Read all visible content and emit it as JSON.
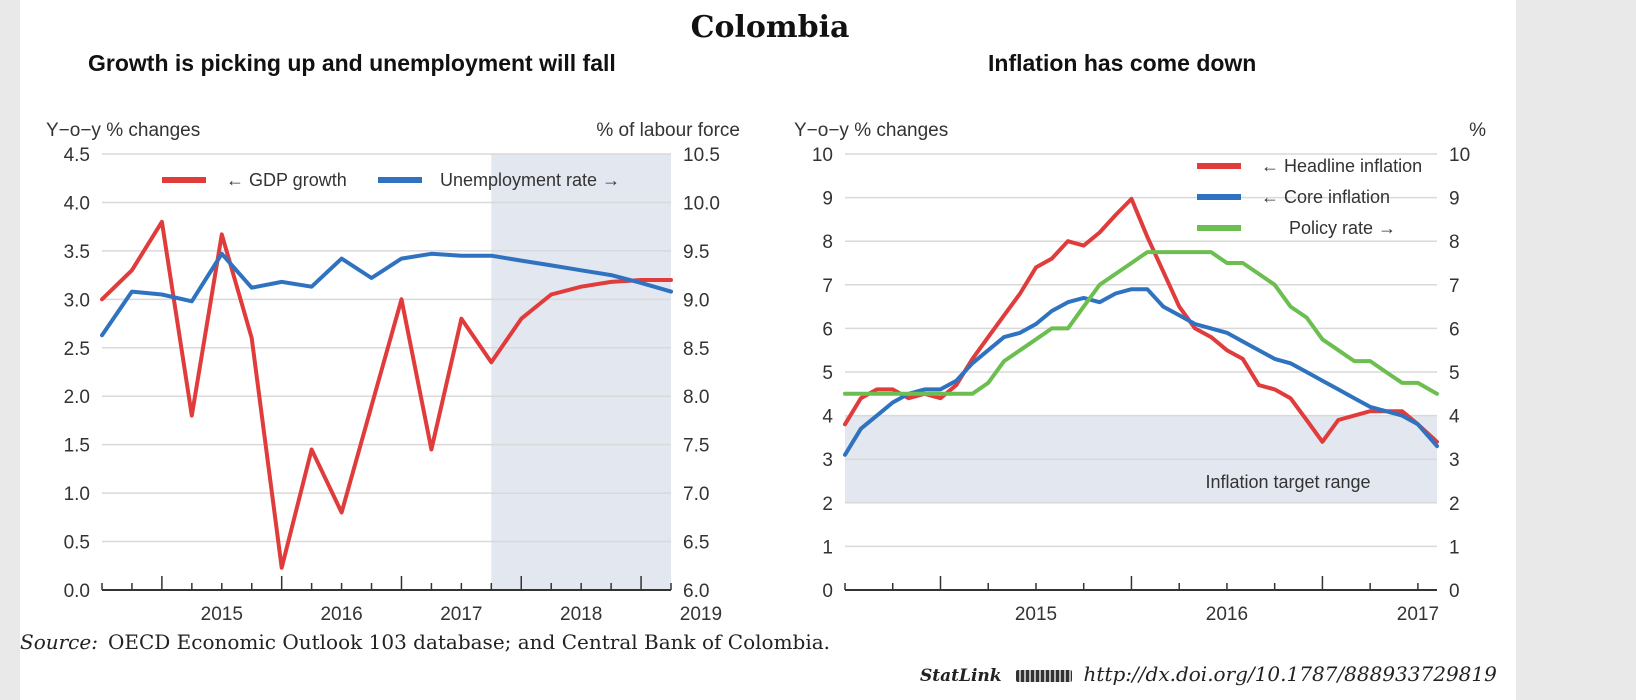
{
  "title": "Colombia",
  "source_label": "Source:",
  "source_text": "OECD Economic Outlook 103 database; and Central Bank of Colombia.",
  "statlink_label": "StatLink",
  "statlink_url": "http://dx.doi.org/10.1787/888933729819",
  "colors": {
    "red": "#e03c3c",
    "blue": "#2f73c0",
    "green": "#6cbe50",
    "shade": "#e3e7ef",
    "grid": "#d9d9d9"
  },
  "chart_data": [
    {
      "type": "line",
      "title": "Growth is picking up and unemployment will fall",
      "ylabel_left": "Y−o−y % changes",
      "ylabel_right": "% of labour force",
      "ylim_left": [
        0,
        4.5
      ],
      "ylim_right": [
        6.0,
        10.5
      ],
      "yticks_left": [
        "0.0",
        "0.5",
        "1.0",
        "1.5",
        "2.0",
        "2.5",
        "3.0",
        "3.5",
        "4.0",
        "4.5"
      ],
      "yticks_right": [
        "6.0",
        "6.5",
        "7.0",
        "7.5",
        "8.0",
        "8.5",
        "9.0",
        "9.5",
        "10.0",
        "10.5"
      ],
      "x_range": [
        2014.5,
        2019.25
      ],
      "xtick_labels": [
        "2015",
        "2016",
        "2017",
        "2018",
        "2019"
      ],
      "shaded_from": 2017.75,
      "grid": true,
      "legend_position": "top",
      "series": [
        {
          "name": "← GDP growth",
          "axis": "left",
          "color": "#e03c3c",
          "x": [
            2014.5,
            2014.75,
            2015.0,
            2015.25,
            2015.5,
            2015.75,
            2016.0,
            2016.25,
            2016.5,
            2016.75,
            2017.0,
            2017.25,
            2017.5,
            2017.75,
            2018.0,
            2018.25,
            2018.5,
            2018.75,
            2019.0,
            2019.25
          ],
          "values": [
            3.0,
            3.3,
            3.8,
            1.8,
            3.67,
            2.6,
            0.23,
            1.45,
            0.8,
            1.9,
            3.0,
            1.45,
            2.8,
            2.35,
            2.8,
            3.05,
            3.13,
            3.18,
            3.2,
            3.2
          ]
        },
        {
          "name": "Unemployment rate →",
          "axis": "right",
          "color": "#2f73c0",
          "x": [
            2014.5,
            2014.75,
            2015.0,
            2015.25,
            2015.5,
            2015.75,
            2016.0,
            2016.25,
            2016.5,
            2016.75,
            2017.0,
            2017.25,
            2017.5,
            2017.75,
            2018.0,
            2018.25,
            2018.5,
            2018.75,
            2019.0,
            2019.25
          ],
          "values": [
            8.63,
            9.08,
            9.05,
            8.98,
            9.47,
            9.12,
            9.18,
            9.13,
            9.42,
            9.22,
            9.42,
            9.47,
            9.45,
            9.45,
            9.4,
            9.35,
            9.3,
            9.25,
            9.17,
            9.08
          ]
        }
      ]
    },
    {
      "type": "line",
      "title": "Inflation has come down",
      "ylabel_left": "Y−o−y % changes",
      "ylabel_right": "%",
      "ylim_left": [
        0,
        10
      ],
      "ylim_right": [
        0,
        10
      ],
      "yticks_left": [
        "0",
        "1",
        "2",
        "3",
        "4",
        "5",
        "6",
        "7",
        "8",
        "9",
        "10"
      ],
      "yticks_right": [
        "0",
        "1",
        "2",
        "3",
        "4",
        "5",
        "6",
        "7",
        "8",
        "9",
        "10"
      ],
      "x_range": [
        2014.5,
        2017.6
      ],
      "xtick_labels": [
        "2015",
        "2016",
        "2017"
      ],
      "target_range": [
        2,
        4
      ],
      "annotation": "Inflation target range",
      "grid": true,
      "legend_position": "top-right",
      "series": [
        {
          "name": "← Headline inflation",
          "axis": "left",
          "color": "#e03c3c",
          "x": [
            2014.5,
            2014.583,
            2014.667,
            2014.75,
            2014.833,
            2014.917,
            2015.0,
            2015.083,
            2015.167,
            2015.25,
            2015.333,
            2015.417,
            2015.5,
            2015.583,
            2015.667,
            2015.75,
            2015.833,
            2015.917,
            2016.0,
            2016.083,
            2016.167,
            2016.25,
            2016.333,
            2016.417,
            2016.5,
            2016.583,
            2016.667,
            2016.75,
            2016.833,
            2016.917,
            2017.0,
            2017.083,
            2017.167,
            2017.25,
            2017.333,
            2017.417,
            2017.5,
            2017.6
          ],
          "values": [
            3.8,
            4.4,
            4.6,
            4.6,
            4.4,
            4.5,
            4.4,
            4.7,
            5.3,
            5.8,
            6.3,
            6.8,
            7.4,
            7.6,
            8.0,
            7.9,
            8.2,
            8.6,
            8.97,
            8.1,
            7.3,
            6.5,
            6.0,
            5.8,
            5.5,
            5.3,
            4.7,
            4.6,
            4.4,
            3.9,
            3.4,
            3.9,
            4.0,
            4.1,
            4.1,
            4.1,
            3.8,
            3.4
          ]
        },
        {
          "name": "← Core inflation",
          "axis": "left",
          "color": "#2f73c0",
          "x": [
            2014.5,
            2014.583,
            2014.667,
            2014.75,
            2014.833,
            2014.917,
            2015.0,
            2015.083,
            2015.167,
            2015.25,
            2015.333,
            2015.417,
            2015.5,
            2015.583,
            2015.667,
            2015.75,
            2015.833,
            2015.917,
            2016.0,
            2016.083,
            2016.167,
            2016.25,
            2016.333,
            2016.417,
            2016.5,
            2016.583,
            2016.667,
            2016.75,
            2016.833,
            2016.917,
            2017.0,
            2017.083,
            2017.167,
            2017.25,
            2017.333,
            2017.417,
            2017.5,
            2017.6
          ],
          "values": [
            3.1,
            3.7,
            4.0,
            4.3,
            4.5,
            4.6,
            4.6,
            4.8,
            5.2,
            5.5,
            5.8,
            5.9,
            6.1,
            6.4,
            6.6,
            6.7,
            6.6,
            6.8,
            6.9,
            6.9,
            6.5,
            6.3,
            6.1,
            6.0,
            5.9,
            5.7,
            5.5,
            5.3,
            5.2,
            5.0,
            4.8,
            4.6,
            4.4,
            4.2,
            4.1,
            4.0,
            3.8,
            3.3
          ]
        },
        {
          "name": "Policy rate →",
          "axis": "right",
          "color": "#6cbe50",
          "x": [
            2014.5,
            2014.583,
            2014.667,
            2014.75,
            2014.833,
            2014.917,
            2015.0,
            2015.083,
            2015.167,
            2015.25,
            2015.333,
            2015.417,
            2015.5,
            2015.583,
            2015.667,
            2015.75,
            2015.833,
            2015.917,
            2016.0,
            2016.083,
            2016.167,
            2016.25,
            2016.333,
            2016.417,
            2016.5,
            2016.583,
            2016.667,
            2016.75,
            2016.833,
            2016.917,
            2017.0,
            2017.083,
            2017.167,
            2017.25,
            2017.333,
            2017.417,
            2017.5,
            2017.6
          ],
          "values": [
            4.5,
            4.5,
            4.5,
            4.5,
            4.5,
            4.5,
            4.5,
            4.5,
            4.5,
            4.75,
            5.25,
            5.5,
            5.75,
            6.0,
            6.0,
            6.5,
            7.0,
            7.25,
            7.5,
            7.75,
            7.75,
            7.75,
            7.75,
            7.75,
            7.5,
            7.5,
            7.25,
            7.0,
            6.5,
            6.25,
            5.75,
            5.5,
            5.25,
            5.25,
            5.0,
            4.75,
            4.75,
            4.5
          ]
        }
      ]
    }
  ]
}
